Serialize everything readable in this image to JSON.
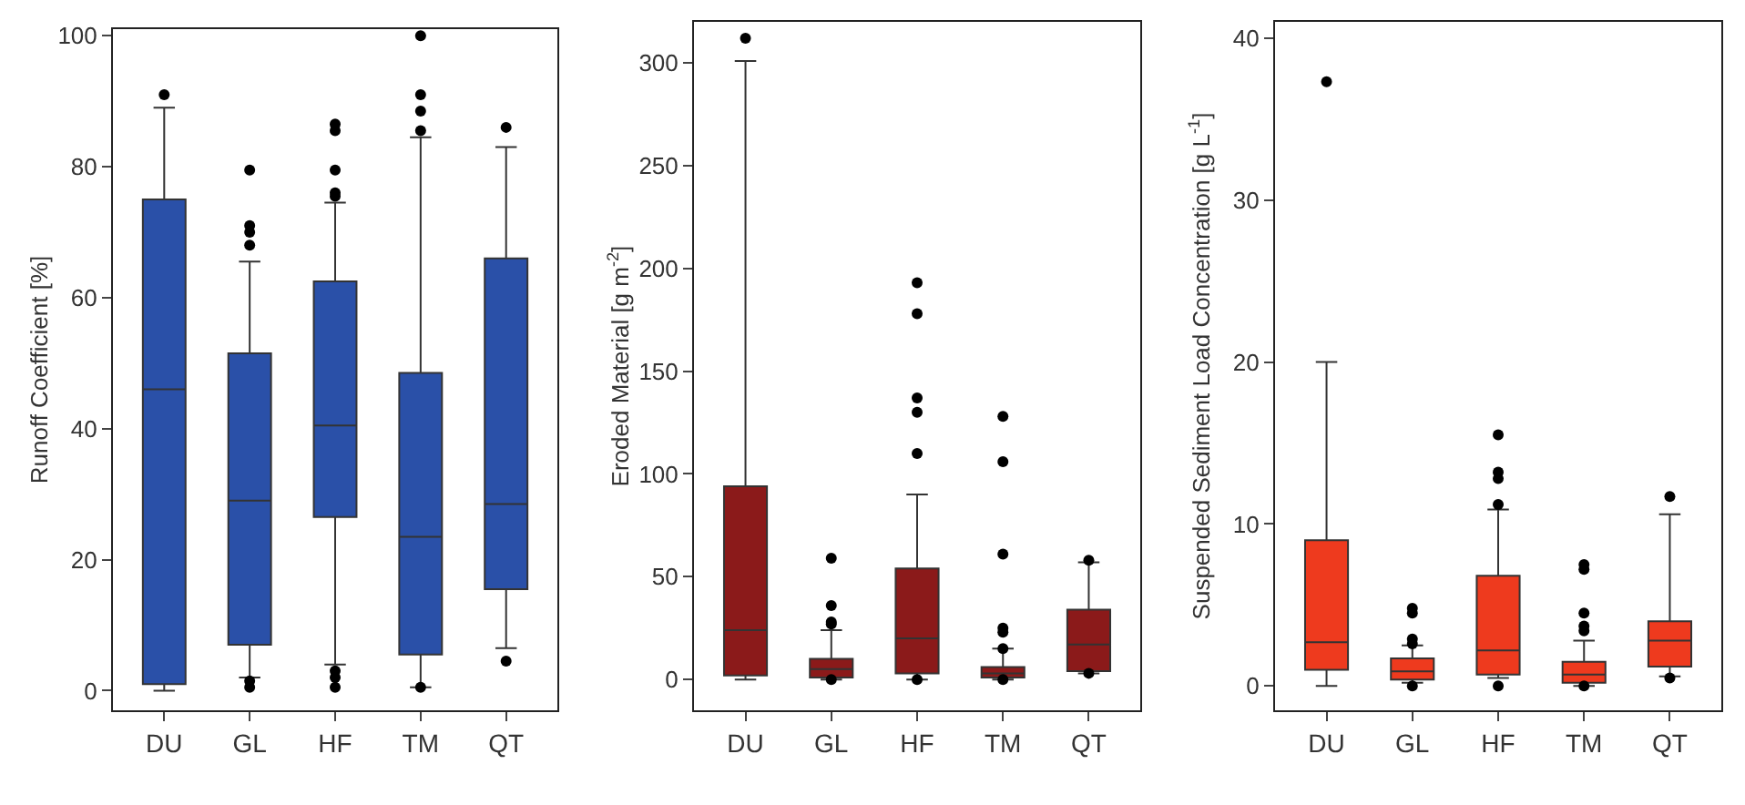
{
  "chart_data": [
    {
      "type": "box",
      "ylabel": "Runoff Coefficient [%]",
      "categories": [
        "DU",
        "GL",
        "HF",
        "TM",
        "QT"
      ],
      "color": "#2a50a8",
      "marker": "circle",
      "ylim": [
        -3,
        101
      ],
      "yticks": [
        0,
        20,
        40,
        60,
        80,
        100
      ],
      "boxes": [
        {
          "low": 0,
          "q1": 1,
          "median": 46,
          "q3": 75,
          "high": 89,
          "outliers": [
            91
          ]
        },
        {
          "low": 2,
          "q1": 7,
          "median": 29,
          "q3": 51.5,
          "high": 65.5,
          "outliers": [
            79.5,
            71,
            70,
            68,
            1.5,
            0.5
          ]
        },
        {
          "low": 4,
          "q1": 26.5,
          "median": 40.5,
          "q3": 62.5,
          "high": 74.5,
          "outliers": [
            86.5,
            85.5,
            79.5,
            76,
            75.5,
            3,
            2,
            0.5
          ]
        },
        {
          "low": 0.5,
          "q1": 5.5,
          "median": 23.5,
          "q3": 48.5,
          "high": 84.5,
          "outliers": [
            100,
            91,
            88.5,
            85.5,
            0.5
          ]
        },
        {
          "low": 6.5,
          "q1": 15.5,
          "median": 28.5,
          "q3": 66,
          "high": 83,
          "outliers": [
            86,
            4.5
          ]
        }
      ]
    },
    {
      "type": "box",
      "ylabel": "Eroded Material [g m$^{-2}$]",
      "categories": [
        "DU",
        "GL",
        "HF",
        "TM",
        "QT"
      ],
      "color": "#8b1a1a",
      "marker": "circle",
      "ylim": [
        -15,
        320
      ],
      "yticks": [
        0,
        50,
        100,
        150,
        200,
        250,
        300
      ],
      "boxes": [
        {
          "low": 0,
          "q1": 2,
          "median": 24,
          "q3": 94,
          "high": 301,
          "outliers": [
            312
          ]
        },
        {
          "low": 0,
          "q1": 1,
          "median": 5,
          "q3": 10,
          "high": 24,
          "outliers": [
            59,
            36,
            28,
            27,
            0
          ]
        },
        {
          "low": 0,
          "q1": 3,
          "median": 20,
          "q3": 54,
          "high": 90,
          "outliers": [
            193,
            178,
            137,
            130,
            110,
            0
          ]
        },
        {
          "low": 0,
          "q1": 1,
          "median": 3,
          "q3": 6,
          "high": 15,
          "outliers": [
            128,
            106,
            61,
            25,
            23,
            15,
            0
          ]
        },
        {
          "low": 3,
          "q1": 4,
          "median": 17,
          "q3": 34,
          "high": 57,
          "outliers": [
            58,
            3
          ]
        }
      ]
    },
    {
      "type": "box",
      "ylabel": "Suspended Sediment Load Concentration [g L$^{-1}$]",
      "categories": [
        "DU",
        "GL",
        "HF",
        "TM",
        "QT"
      ],
      "color": "#ee3a1e",
      "marker": "circle",
      "ylim": [
        -1.5,
        41
      ],
      "yticks": [
        0,
        10,
        20,
        30,
        40
      ],
      "boxes": [
        {
          "low": 0,
          "q1": 1,
          "median": 2.7,
          "q3": 9,
          "high": 20,
          "outliers": [
            37.3
          ]
        },
        {
          "low": 0.2,
          "q1": 0.4,
          "median": 0.9,
          "q3": 1.7,
          "high": 2.5,
          "outliers": [
            4.8,
            4.5,
            2.9,
            2.6,
            0
          ]
        },
        {
          "low": 0.5,
          "q1": 0.7,
          "median": 2.2,
          "q3": 6.8,
          "high": 10.9,
          "outliers": [
            15.5,
            13.2,
            12.8,
            11.2,
            0
          ]
        },
        {
          "low": 0,
          "q1": 0.2,
          "median": 0.7,
          "q3": 1.5,
          "high": 2.8,
          "outliers": [
            7.5,
            7.2,
            4.5,
            3.7,
            3.4,
            0
          ]
        },
        {
          "low": 0.6,
          "q1": 1.2,
          "median": 2.8,
          "q3": 4,
          "high": 10.6,
          "outliers": [
            11.7,
            0.5
          ]
        }
      ]
    }
  ]
}
